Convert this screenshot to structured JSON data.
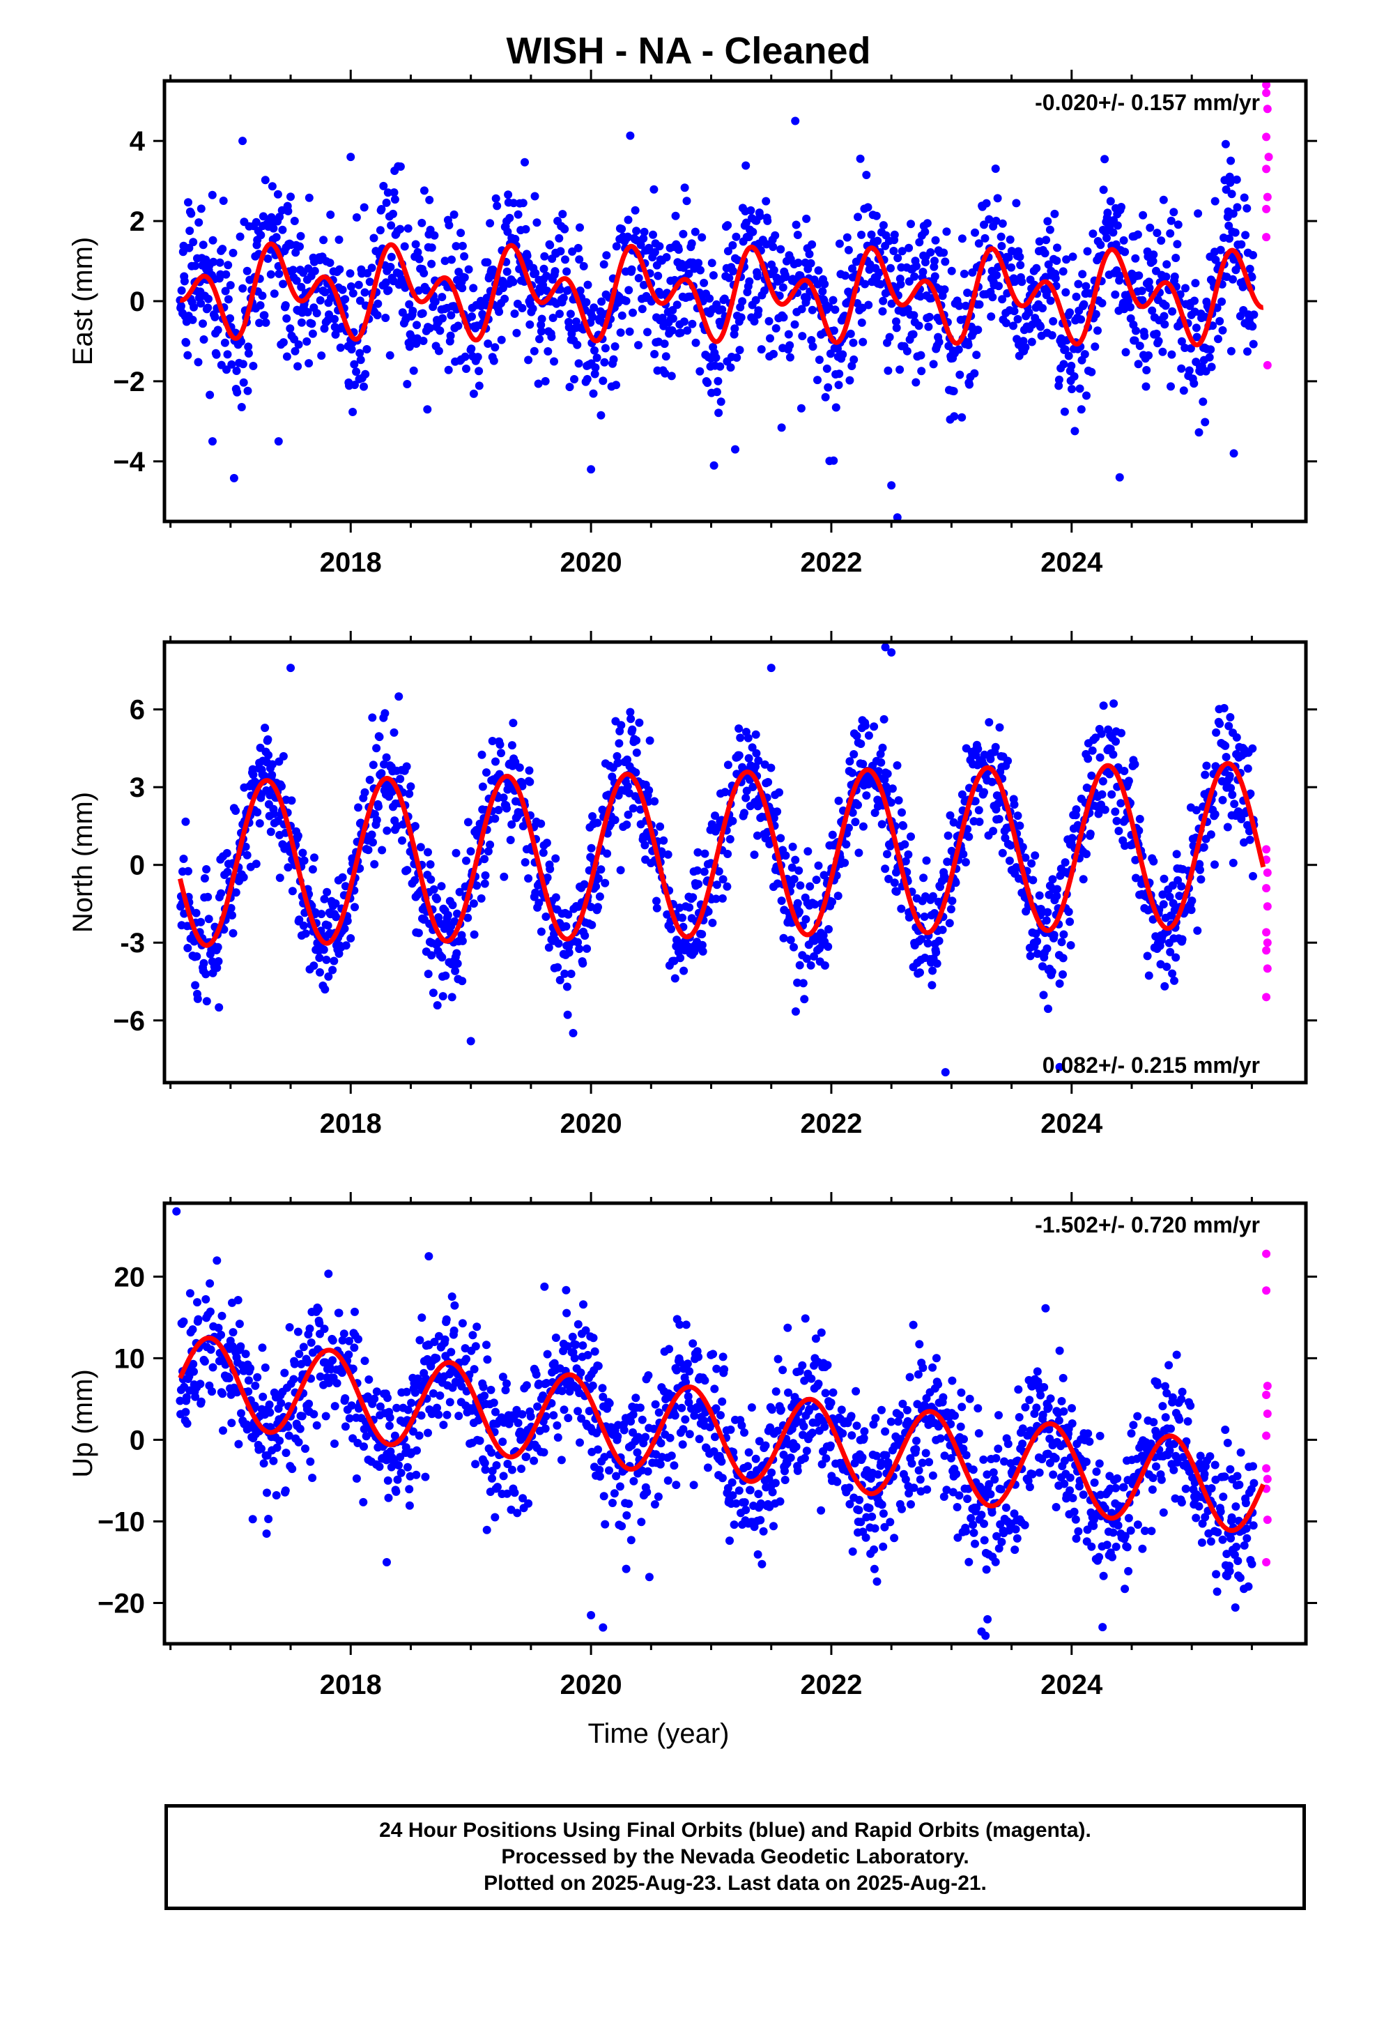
{
  "title": "WISH  - NA - Cleaned",
  "footer": {
    "line1": "24 Hour Positions Using Final Orbits (blue) and Rapid Orbits (magenta).",
    "line2": "Processed by the Nevada Geodetic Laboratory.",
    "line3": "Plotted on 2025-Aug-23. Last data on 2025-Aug-21."
  },
  "colors": {
    "final": "#0000ff",
    "rapid": "#ff00ff",
    "fit": "#ff0000"
  },
  "chart_data": [
    {
      "type": "scatter",
      "ylabel": "East (mm)",
      "xlabel": "",
      "rate_label": "-0.020+/- 0.157 mm/yr",
      "rate_position": "top-right",
      "xlim": [
        2016.45,
        2025.95
      ],
      "ylim": [
        -5.5,
        5.5
      ],
      "yticks": [
        -4,
        -2,
        0,
        2,
        4
      ],
      "ytick_labels": [
        "−4",
        "−2",
        "0",
        "2",
        "4"
      ],
      "xticks": [
        2018,
        2020,
        2022,
        2024
      ],
      "xtick_labels": [
        "2018",
        "2020",
        "2022",
        "2024"
      ],
      "noise_sd": 1.0,
      "outliers": [
        [
          2017.1,
          4.0
        ],
        [
          2018.0,
          3.6
        ],
        [
          2020.0,
          -4.2
        ],
        [
          2021.2,
          -3.7
        ],
        [
          2021.7,
          4.5
        ],
        [
          2022.5,
          -4.6
        ],
        [
          2022.55,
          -5.4
        ],
        [
          2024.4,
          -4.4
        ],
        [
          2025.35,
          -3.8
        ],
        [
          2016.85,
          -3.5
        ],
        [
          2017.4,
          -3.5
        ]
      ],
      "fit": {
        "offset": 0.2,
        "trend": -0.02,
        "ref_year": 2021.0,
        "annual_cos": -0.6,
        "annual_sin": 0.2,
        "semi_cos": -0.5,
        "semi_sin": -0.5
      },
      "rapid_points": [
        [
          2025.62,
          5.4
        ],
        [
          2025.62,
          5.2
        ],
        [
          2025.63,
          4.8
        ],
        [
          2025.62,
          4.1
        ],
        [
          2025.64,
          3.6
        ],
        [
          2025.62,
          3.3
        ],
        [
          2025.63,
          2.6
        ],
        [
          2025.62,
          2.3
        ],
        [
          2025.62,
          1.6
        ],
        [
          2025.63,
          -1.6
        ]
      ]
    },
    {
      "type": "scatter",
      "ylabel": "North (mm)",
      "xlabel": "",
      "rate_label": "0.082+/- 0.215 mm/yr",
      "rate_position": "bottom-right",
      "xlim": [
        2016.45,
        2025.95
      ],
      "ylim": [
        -8.4,
        8.6
      ],
      "yticks": [
        -6,
        -3,
        0,
        3,
        6
      ],
      "ytick_labels": [
        "−6",
        "-3",
        "0",
        "3",
        "6"
      ],
      "xticks": [
        2018,
        2020,
        2022,
        2024
      ],
      "xtick_labels": [
        "2018",
        "2020",
        "2022",
        "2024"
      ],
      "noise_sd": 1.2,
      "outliers": [
        [
          2019.0,
          -6.8
        ],
        [
          2022.45,
          8.4
        ],
        [
          2022.5,
          8.2
        ],
        [
          2022.95,
          -8.0
        ],
        [
          2023.9,
          -7.8
        ],
        [
          2017.5,
          7.6
        ],
        [
          2021.5,
          7.6
        ],
        [
          2018.4,
          6.5
        ]
      ],
      "fit": {
        "offset": 0.4,
        "trend": 0.082,
        "ref_year": 2021.0,
        "annual_cos": -1.0,
        "annual_sin": 3.0,
        "semi_cos": 0.0,
        "semi_sin": 0.0
      },
      "rapid_points": [
        [
          2025.62,
          0.6
        ],
        [
          2025.62,
          0.2
        ],
        [
          2025.63,
          -0.3
        ],
        [
          2025.62,
          -0.9
        ],
        [
          2025.63,
          -1.6
        ],
        [
          2025.62,
          -2.6
        ],
        [
          2025.63,
          -3.0
        ],
        [
          2025.62,
          -3.3
        ],
        [
          2025.63,
          -4.0
        ],
        [
          2025.62,
          -5.1
        ]
      ]
    },
    {
      "type": "scatter",
      "ylabel": "Up (mm)",
      "xlabel": "Time (year)",
      "rate_label": "-1.502+/- 0.720 mm/yr",
      "rate_position": "top-right",
      "xlim": [
        2016.45,
        2025.95
      ],
      "ylim": [
        -25,
        29
      ],
      "yticks": [
        -20,
        -10,
        0,
        10,
        20
      ],
      "ytick_labels": [
        "−20",
        "−10",
        "0",
        "10",
        "20"
      ],
      "xticks": [
        2018,
        2020,
        2022,
        2024
      ],
      "xtick_labels": [
        "2018",
        "2020",
        "2022",
        "2024"
      ],
      "noise_sd": 4.5,
      "outliers": [
        [
          2016.55,
          28.0
        ],
        [
          2018.65,
          22.5
        ],
        [
          2020.1,
          -23.0
        ],
        [
          2020.0,
          -21.5
        ],
        [
          2023.25,
          -23.5
        ],
        [
          2023.3,
          -22.0
        ],
        [
          2018.3,
          -15.0
        ],
        [
          2017.3,
          -11.5
        ]
      ],
      "fit": {
        "offset": 0.8,
        "trend": -1.502,
        "ref_year": 2021.0,
        "annual_cos": 2.5,
        "annual_sin": -4.8,
        "semi_cos": 0.0,
        "semi_sin": 0.0
      },
      "rapid_points": [
        [
          2025.62,
          22.8
        ],
        [
          2025.62,
          18.3
        ],
        [
          2025.63,
          6.6
        ],
        [
          2025.62,
          5.5
        ],
        [
          2025.63,
          3.2
        ],
        [
          2025.62,
          0.5
        ],
        [
          2025.62,
          -3.5
        ],
        [
          2025.63,
          -4.8
        ],
        [
          2025.62,
          -6.0
        ],
        [
          2025.63,
          -9.8
        ],
        [
          2025.62,
          -15.0
        ]
      ]
    }
  ]
}
